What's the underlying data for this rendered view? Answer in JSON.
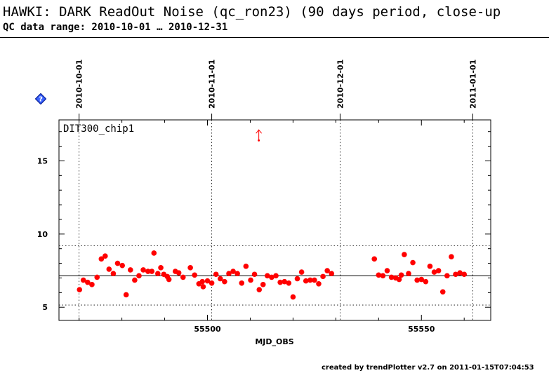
{
  "header": {
    "title": "HAWKI: DARK ReadOut Noise (qc_ron23) (90 days period, close-up",
    "subtitle": "QC data range: 2010-10-01 … 2010-12-31"
  },
  "icons": {
    "help": "help-diamond-icon"
  },
  "colors": {
    "points": "#ff0000",
    "mean_line": "#000000",
    "sigma_lines": "#000000"
  },
  "footer": {
    "text": "created by trendPlotter v2.7 on 2011-01-15T07:04:53"
  },
  "chart_data": {
    "type": "scatter",
    "panel_label": "DIT300_chip1",
    "xlabel": "MJD_OBS",
    "xlim": [
      55465.3,
      55566.2
    ],
    "ylim": [
      4.1,
      17.8
    ],
    "x_ticks": [
      55500,
      55550
    ],
    "y_ticks": [
      5,
      10,
      15
    ],
    "date_markers": [
      {
        "label": "2010-10-01",
        "mjd": 55470
      },
      {
        "label": "2010-11-01",
        "mjd": 55501
      },
      {
        "label": "2010-12-01",
        "mjd": 55531
      },
      {
        "label": "2011-01-01",
        "mjd": 55562
      }
    ],
    "mean": 7.15,
    "sigma_lines": [
      5.15,
      9.2
    ],
    "outliers_off_scale": [
      {
        "x": 55512,
        "y": 16.4
      }
    ],
    "points": [
      {
        "x": 55470.1,
        "y": 6.2
      },
      {
        "x": 55471.0,
        "y": 6.85
      },
      {
        "x": 55472.0,
        "y": 6.7
      },
      {
        "x": 55473.0,
        "y": 6.55
      },
      {
        "x": 55474.2,
        "y": 7.05
      },
      {
        "x": 55475.2,
        "y": 8.3
      },
      {
        "x": 55476.1,
        "y": 8.5
      },
      {
        "x": 55477.0,
        "y": 7.6
      },
      {
        "x": 55478.0,
        "y": 7.3
      },
      {
        "x": 55479.0,
        "y": 8.0
      },
      {
        "x": 55480.1,
        "y": 7.85
      },
      {
        "x": 55481.0,
        "y": 5.85
      },
      {
        "x": 55482.0,
        "y": 7.55
      },
      {
        "x": 55483.0,
        "y": 6.85
      },
      {
        "x": 55484.0,
        "y": 7.15
      },
      {
        "x": 55485.0,
        "y": 7.55
      },
      {
        "x": 55486.1,
        "y": 7.45
      },
      {
        "x": 55487.0,
        "y": 7.45
      },
      {
        "x": 55487.5,
        "y": 8.7
      },
      {
        "x": 55488.4,
        "y": 7.3
      },
      {
        "x": 55489.1,
        "y": 7.7
      },
      {
        "x": 55489.8,
        "y": 7.25
      },
      {
        "x": 55490.6,
        "y": 7.1
      },
      {
        "x": 55491.0,
        "y": 6.9
      },
      {
        "x": 55492.5,
        "y": 7.45
      },
      {
        "x": 55493.3,
        "y": 7.35
      },
      {
        "x": 55494.3,
        "y": 7.05
      },
      {
        "x": 55496.0,
        "y": 7.7
      },
      {
        "x": 55497.0,
        "y": 7.2
      },
      {
        "x": 55498.0,
        "y": 6.6
      },
      {
        "x": 55498.8,
        "y": 6.75
      },
      {
        "x": 55499.0,
        "y": 6.4
      },
      {
        "x": 55500.0,
        "y": 6.8
      },
      {
        "x": 55501.0,
        "y": 6.65
      },
      {
        "x": 55502.0,
        "y": 7.25
      },
      {
        "x": 55503.0,
        "y": 6.95
      },
      {
        "x": 55504.0,
        "y": 6.75
      },
      {
        "x": 55505.0,
        "y": 7.3
      },
      {
        "x": 55506.0,
        "y": 7.45
      },
      {
        "x": 55507.0,
        "y": 7.3
      },
      {
        "x": 55508.0,
        "y": 6.65
      },
      {
        "x": 55509.0,
        "y": 7.8
      },
      {
        "x": 55510.1,
        "y": 6.85
      },
      {
        "x": 55511.0,
        "y": 7.25
      },
      {
        "x": 55512.1,
        "y": 6.2
      },
      {
        "x": 55513.0,
        "y": 6.55
      },
      {
        "x": 55514.0,
        "y": 7.15
      },
      {
        "x": 55515.0,
        "y": 7.05
      },
      {
        "x": 55516.0,
        "y": 7.15
      },
      {
        "x": 55517.0,
        "y": 6.7
      },
      {
        "x": 55518.0,
        "y": 6.75
      },
      {
        "x": 55519.0,
        "y": 6.65
      },
      {
        "x": 55520.0,
        "y": 5.7
      },
      {
        "x": 55521.0,
        "y": 6.95
      },
      {
        "x": 55522.0,
        "y": 7.4
      },
      {
        "x": 55523.0,
        "y": 6.8
      },
      {
        "x": 55524.0,
        "y": 6.85
      },
      {
        "x": 55525.0,
        "y": 6.85
      },
      {
        "x": 55526.0,
        "y": 6.6
      },
      {
        "x": 55527.0,
        "y": 7.1
      },
      {
        "x": 55528.0,
        "y": 7.5
      },
      {
        "x": 55529.0,
        "y": 7.3
      },
      {
        "x": 55539.0,
        "y": 8.3
      },
      {
        "x": 55540.0,
        "y": 7.2
      },
      {
        "x": 55541.0,
        "y": 7.15
      },
      {
        "x": 55542.0,
        "y": 7.5
      },
      {
        "x": 55543.0,
        "y": 7.05
      },
      {
        "x": 55544.0,
        "y": 7.0
      },
      {
        "x": 55544.8,
        "y": 6.9
      },
      {
        "x": 55545.3,
        "y": 7.2
      },
      {
        "x": 55546.0,
        "y": 8.6
      },
      {
        "x": 55547.0,
        "y": 7.3
      },
      {
        "x": 55548.0,
        "y": 8.05
      },
      {
        "x": 55549.0,
        "y": 6.85
      },
      {
        "x": 55550.0,
        "y": 6.9
      },
      {
        "x": 55551.0,
        "y": 6.75
      },
      {
        "x": 55552.0,
        "y": 7.8
      },
      {
        "x": 55553.0,
        "y": 7.4
      },
      {
        "x": 55554.0,
        "y": 7.5
      },
      {
        "x": 55555.0,
        "y": 6.05
      },
      {
        "x": 55556.0,
        "y": 7.15
      },
      {
        "x": 55557.0,
        "y": 8.45
      },
      {
        "x": 55558.0,
        "y": 7.25
      },
      {
        "x": 55559.0,
        "y": 7.35
      },
      {
        "x": 55560.0,
        "y": 7.25
      }
    ]
  }
}
